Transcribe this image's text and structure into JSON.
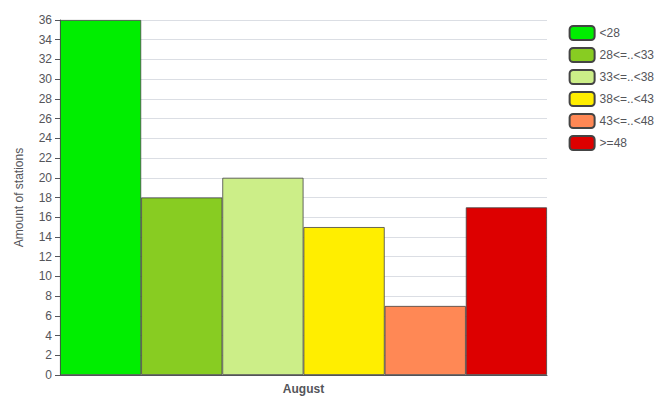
{
  "chart_data": {
    "type": "bar",
    "categories": [
      "August"
    ],
    "series": [
      {
        "name": "<28",
        "color": "#00ee00",
        "values": [
          36
        ]
      },
      {
        "name": "28<=..<33",
        "color": "#88cc22",
        "values": [
          18
        ]
      },
      {
        "name": "33<=..<38",
        "color": "#ccee88",
        "values": [
          20
        ]
      },
      {
        "name": "38<=..<43",
        "color": "#ffee00",
        "values": [
          15
        ]
      },
      {
        "name": "43<=..<48",
        "color": "#ff8855",
        "values": [
          7
        ]
      },
      {
        "name": ">=48",
        "color": "#dd0000",
        "values": [
          17
        ]
      }
    ],
    "ylabel": "Amount of stations",
    "ylim": [
      0,
      36
    ],
    "yticks": [
      0,
      2,
      4,
      6,
      8,
      10,
      12,
      14,
      16,
      18,
      20,
      22,
      24,
      26,
      28,
      30,
      32,
      34,
      36
    ],
    "grid": true,
    "legend": "upper right"
  }
}
